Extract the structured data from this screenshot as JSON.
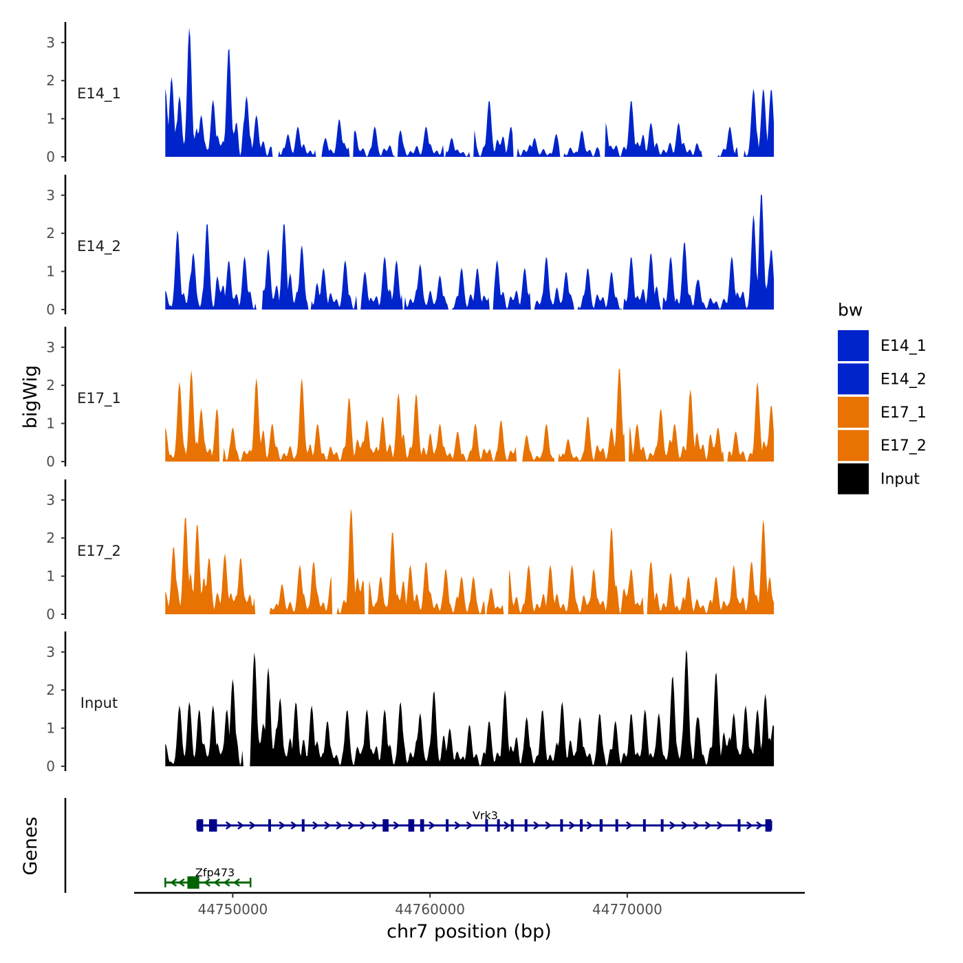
{
  "chart_data": {
    "type": "area",
    "chromosome": "chr7",
    "xlabel": "chr7 position (bp)",
    "xlim": [
      44745000,
      44779000
    ],
    "x_ticks": [
      44750000,
      44760000,
      44770000
    ],
    "x_tick_labels": [
      "44750000",
      "44760000",
      "44770000"
    ],
    "x_data_range": [
      44746580,
      44777400
    ],
    "ylabel": "bigWig",
    "genes_label": "Genes",
    "ylim": [
      0,
      3.5
    ],
    "y_ticks": [
      0,
      1,
      2,
      3
    ],
    "y_tick_labels": [
      "0",
      "1",
      "2",
      "3"
    ],
    "legend_title": "bw",
    "legend_position": "right",
    "series": [
      {
        "name": "E14_1",
        "color": "#0024CC",
        "peaks": [
          [
            44746580,
            1.8
          ],
          [
            44746900,
            2.1
          ],
          [
            44747300,
            1.6
          ],
          [
            44747800,
            3.4
          ],
          [
            44748400,
            1.1
          ],
          [
            44749000,
            1.5
          ],
          [
            44749800,
            2.9
          ],
          [
            44750700,
            1.6
          ],
          [
            44751200,
            1.1
          ],
          [
            44752800,
            0.6
          ],
          [
            44753300,
            0.8
          ],
          [
            44754700,
            0.5
          ],
          [
            44755400,
            1.0
          ],
          [
            44756200,
            0.7
          ],
          [
            44757200,
            0.8
          ],
          [
            44758500,
            0.7
          ],
          [
            44759800,
            0.8
          ],
          [
            44761100,
            0.5
          ],
          [
            44762200,
            0.8
          ],
          [
            44763000,
            1.5
          ],
          [
            44764100,
            0.8
          ],
          [
            44765300,
            0.5
          ],
          [
            44766400,
            0.6
          ],
          [
            44767700,
            0.7
          ],
          [
            44768900,
            0.9
          ],
          [
            44770200,
            1.5
          ],
          [
            44771200,
            0.9
          ],
          [
            44772600,
            0.9
          ],
          [
            44774000,
            0.6
          ],
          [
            44775200,
            0.8
          ],
          [
            44776400,
            1.8
          ],
          [
            44776900,
            1.8
          ],
          [
            44777300,
            1.8
          ]
        ],
        "gaps": [
          [
            44752000,
            44752300
          ],
          [
            44754200,
            44754500
          ],
          [
            44755900,
            44756100
          ],
          [
            44758200,
            44758400
          ],
          [
            44760700,
            44760800
          ],
          [
            44762000,
            44762200
          ],
          [
            44764200,
            44764400
          ],
          [
            44766600,
            44766800
          ],
          [
            44768600,
            44768900
          ],
          [
            44773800,
            44774600
          ],
          [
            44775600,
            44775900
          ]
        ]
      },
      {
        "name": "E14_2",
        "color": "#0024CC",
        "peaks": [
          [
            44746580,
            0.5
          ],
          [
            44747200,
            2.1
          ],
          [
            44748000,
            1.5
          ],
          [
            44748700,
            2.3
          ],
          [
            44749800,
            1.3
          ],
          [
            44750600,
            1.4
          ],
          [
            44751800,
            1.6
          ],
          [
            44752600,
            2.3
          ],
          [
            44753500,
            1.7
          ],
          [
            44754600,
            1.1
          ],
          [
            44755700,
            1.3
          ],
          [
            44756700,
            1.0
          ],
          [
            44757700,
            1.4
          ],
          [
            44758300,
            1.3
          ],
          [
            44759500,
            1.2
          ],
          [
            44760500,
            0.9
          ],
          [
            44761600,
            1.1
          ],
          [
            44762400,
            1.1
          ],
          [
            44763400,
            1.3
          ],
          [
            44764800,
            1.1
          ],
          [
            44765900,
            1.4
          ],
          [
            44766900,
            1.0
          ],
          [
            44768000,
            1.1
          ],
          [
            44769200,
            1.0
          ],
          [
            44770200,
            1.4
          ],
          [
            44771200,
            1.5
          ],
          [
            44772200,
            1.4
          ],
          [
            44772900,
            1.8
          ],
          [
            44773600,
            0.8
          ],
          [
            44775300,
            1.4
          ],
          [
            44776400,
            2.5
          ],
          [
            44776800,
            3.1
          ],
          [
            44777300,
            1.6
          ]
        ],
        "gaps": [
          [
            44751200,
            44751500
          ],
          [
            44753800,
            44754000
          ],
          [
            44756300,
            44756500
          ],
          [
            44758600,
            44758700
          ],
          [
            44760900,
            44761100
          ],
          [
            44763000,
            44763200
          ],
          [
            44765100,
            44765300
          ],
          [
            44767300,
            44767500
          ],
          [
            44769700,
            44769800
          ],
          [
            44771700,
            44771800
          ]
        ]
      },
      {
        "name": "E17_1",
        "color": "#E87202",
        "peaks": [
          [
            44746580,
            0.9
          ],
          [
            44747300,
            2.1
          ],
          [
            44747900,
            2.4
          ],
          [
            44748400,
            1.4
          ],
          [
            44749200,
            1.4
          ],
          [
            44750000,
            0.9
          ],
          [
            44751200,
            2.2
          ],
          [
            44752000,
            1.0
          ],
          [
            44753500,
            2.2
          ],
          [
            44754300,
            1.0
          ],
          [
            44755900,
            1.7
          ],
          [
            44756800,
            1.1
          ],
          [
            44757600,
            1.2
          ],
          [
            44758400,
            1.8
          ],
          [
            44759300,
            1.8
          ],
          [
            44760500,
            1.0
          ],
          [
            44761400,
            0.8
          ],
          [
            44762300,
            1.0
          ],
          [
            44763600,
            1.1
          ],
          [
            44764900,
            0.7
          ],
          [
            44765900,
            1.0
          ],
          [
            44767000,
            0.6
          ],
          [
            44768000,
            1.2
          ],
          [
            44769200,
            0.9
          ],
          [
            44769600,
            2.5
          ],
          [
            44770500,
            1.0
          ],
          [
            44771700,
            1.4
          ],
          [
            44772400,
            1.0
          ],
          [
            44773200,
            1.9
          ],
          [
            44774600,
            0.9
          ],
          [
            44775500,
            0.8
          ],
          [
            44776600,
            2.1
          ],
          [
            44777300,
            1.5
          ]
        ],
        "gaps": [
          [
            44749300,
            44749500
          ],
          [
            44764400,
            44764700
          ],
          [
            44766300,
            44766500
          ],
          [
            44769900,
            44770100
          ],
          [
            44774900,
            44775100
          ]
        ]
      },
      {
        "name": "E17_2",
        "color": "#E87202",
        "peaks": [
          [
            44746580,
            0.6
          ],
          [
            44747000,
            1.8
          ],
          [
            44747600,
            2.6
          ],
          [
            44748200,
            2.4
          ],
          [
            44748800,
            1.5
          ],
          [
            44749600,
            1.6
          ],
          [
            44750400,
            1.5
          ],
          [
            44751200,
            0.7
          ],
          [
            44752500,
            0.8
          ],
          [
            44753400,
            1.3
          ],
          [
            44754100,
            1.4
          ],
          [
            44755000,
            1.0
          ],
          [
            44756000,
            2.8
          ],
          [
            44756900,
            0.9
          ],
          [
            44757500,
            1.0
          ],
          [
            44758100,
            2.2
          ],
          [
            44759000,
            1.3
          ],
          [
            44759800,
            1.4
          ],
          [
            44760800,
            1.2
          ],
          [
            44761600,
            1.0
          ],
          [
            44762200,
            1.0
          ],
          [
            44763100,
            0.7
          ],
          [
            44764000,
            1.2
          ],
          [
            44765000,
            1.3
          ],
          [
            44766100,
            1.3
          ],
          [
            44767200,
            1.3
          ],
          [
            44768300,
            1.2
          ],
          [
            44769200,
            2.3
          ],
          [
            44770200,
            1.2
          ],
          [
            44771200,
            1.4
          ],
          [
            44772200,
            1.1
          ],
          [
            44773100,
            1.0
          ],
          [
            44774500,
            1.0
          ],
          [
            44775400,
            1.3
          ],
          [
            44776300,
            1.4
          ],
          [
            44776900,
            2.5
          ],
          [
            44777350,
            0.4
          ]
        ],
        "gaps": [
          [
            44751100,
            44751900
          ],
          [
            44755000,
            44755300
          ],
          [
            44756700,
            44756900
          ],
          [
            44762800,
            44762900
          ],
          [
            44763700,
            44764000
          ],
          [
            44770800,
            44771000
          ]
        ]
      },
      {
        "name": "Input",
        "color": "#000000",
        "peaks": [
          [
            44746580,
            0.6
          ],
          [
            44747300,
            1.6
          ],
          [
            44747800,
            1.7
          ],
          [
            44748300,
            1.5
          ],
          [
            44749000,
            1.6
          ],
          [
            44749700,
            1.5
          ],
          [
            44750000,
            2.3
          ],
          [
            44750600,
            0.1
          ],
          [
            44751100,
            3.0
          ],
          [
            44751800,
            2.6
          ],
          [
            44752400,
            1.8
          ],
          [
            44753200,
            1.7
          ],
          [
            44754000,
            1.6
          ],
          [
            44754800,
            1.2
          ],
          [
            44755800,
            1.5
          ],
          [
            44756800,
            1.5
          ],
          [
            44757700,
            1.5
          ],
          [
            44758500,
            1.7
          ],
          [
            44759500,
            1.4
          ],
          [
            44760200,
            2.0
          ],
          [
            44761000,
            1.0
          ],
          [
            44762000,
            1.1
          ],
          [
            44763000,
            1.2
          ],
          [
            44763800,
            2.0
          ],
          [
            44764900,
            1.3
          ],
          [
            44765700,
            1.5
          ],
          [
            44766700,
            1.7
          ],
          [
            44767600,
            1.3
          ],
          [
            44768600,
            1.4
          ],
          [
            44769400,
            1.2
          ],
          [
            44770200,
            1.4
          ],
          [
            44770900,
            1.5
          ],
          [
            44771600,
            1.4
          ],
          [
            44772300,
            2.4
          ],
          [
            44773000,
            3.1
          ],
          [
            44773600,
            1.3
          ],
          [
            44774500,
            2.5
          ],
          [
            44775400,
            1.4
          ],
          [
            44776000,
            1.6
          ],
          [
            44776600,
            1.5
          ],
          [
            44777000,
            1.9
          ],
          [
            44777400,
            1.1
          ]
        ],
        "gaps": [
          [
            44750500,
            44750900
          ]
        ]
      }
    ],
    "gene_tracks": [
      {
        "name": "Vrk3",
        "strand": "+",
        "start": 44748200,
        "end": 44777300,
        "color": "#00008B",
        "label_position": 44762800,
        "exons": [
          [
            44748200,
            44748500
          ],
          [
            44748800,
            44749200
          ],
          [
            44751800,
            44751900
          ],
          [
            44753500,
            44753600
          ],
          [
            44757600,
            44757900
          ],
          [
            44758900,
            44759200
          ],
          [
            44759500,
            44759700
          ],
          [
            44760800,
            44760900
          ],
          [
            44762800,
            44762900
          ],
          [
            44763400,
            44763500
          ],
          [
            44764100,
            44764200
          ],
          [
            44764800,
            44764900
          ],
          [
            44766600,
            44766700
          ],
          [
            44767600,
            44767700
          ],
          [
            44768600,
            44768750
          ],
          [
            44769400,
            44769500
          ],
          [
            44770800,
            44770900
          ],
          [
            44771700,
            44771800
          ],
          [
            44775600,
            44775700
          ],
          [
            44777000,
            44777300
          ]
        ],
        "chevrons": [
          44749800,
          44750400,
          44751000,
          44752500,
          44753100,
          44754200,
          44754800,
          44755400,
          44756000,
          44756600,
          44757200,
          44758300,
          44760100,
          44761400,
          44762000,
          44763900,
          44765400,
          44766000,
          44767200,
          44768100,
          44770100,
          44772300,
          44772900,
          44773500,
          44774100,
          44774700,
          44776200,
          44776700
        ]
      },
      {
        "name": "Zfp473",
        "strand": "-",
        "start": 44746580,
        "end": 44750900,
        "color": "#006400",
        "label_position": 44749100,
        "exons": [
          [
            44747700,
            44748300
          ]
        ],
        "chevrons": [
          44747000,
          44747400,
          44748700,
          44749200,
          44749700,
          44750200
        ]
      }
    ]
  }
}
